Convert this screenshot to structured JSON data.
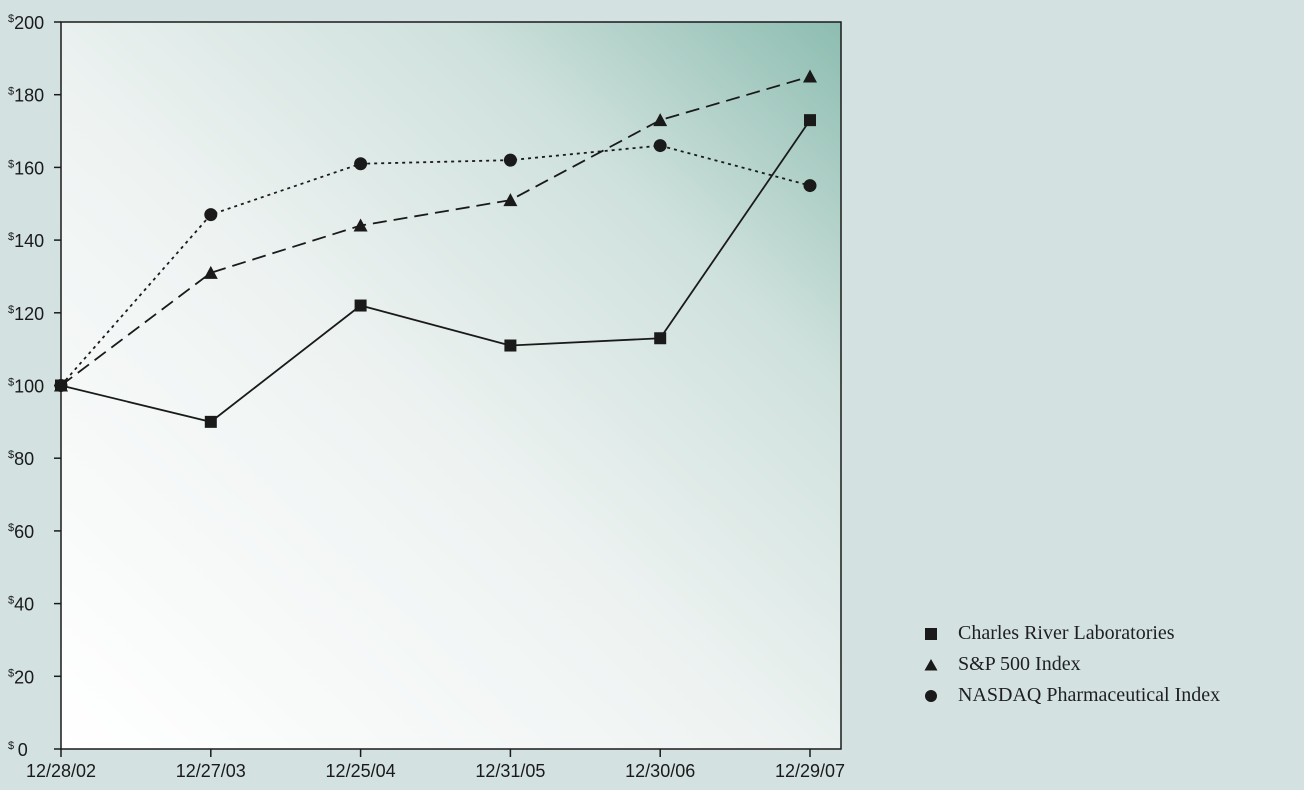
{
  "chart_data": {
    "type": "line",
    "title": "",
    "xlabel": "",
    "ylabel": "",
    "categories": [
      "12/28/02",
      "12/27/03",
      "12/25/04",
      "12/31/05",
      "12/30/06",
      "12/29/07"
    ],
    "ylim": [
      0,
      200
    ],
    "yticks": [
      0,
      20,
      40,
      60,
      80,
      100,
      120,
      140,
      160,
      180,
      200
    ],
    "ytick_prefix": "$",
    "grid": false,
    "legend_position": "bottom-right",
    "series": [
      {
        "name": "Charles River Laboratories",
        "marker": "square",
        "line_style": "solid",
        "values": [
          100,
          90,
          122,
          111,
          113,
          173
        ]
      },
      {
        "name": "S&P 500 Index",
        "marker": "triangle",
        "line_style": "dashed",
        "values": [
          100,
          131,
          144,
          151,
          173,
          185
        ]
      },
      {
        "name": "NASDAQ Pharmaceutical Index",
        "marker": "circle",
        "line_style": "dotted",
        "values": [
          100,
          147,
          161,
          162,
          166,
          155
        ]
      }
    ],
    "colors": {
      "background": "#d3e2e1",
      "plot_gradient_light": "#ffffff",
      "plot_gradient_dark": "#8dbdb0",
      "line": "#1a1a1a"
    }
  }
}
